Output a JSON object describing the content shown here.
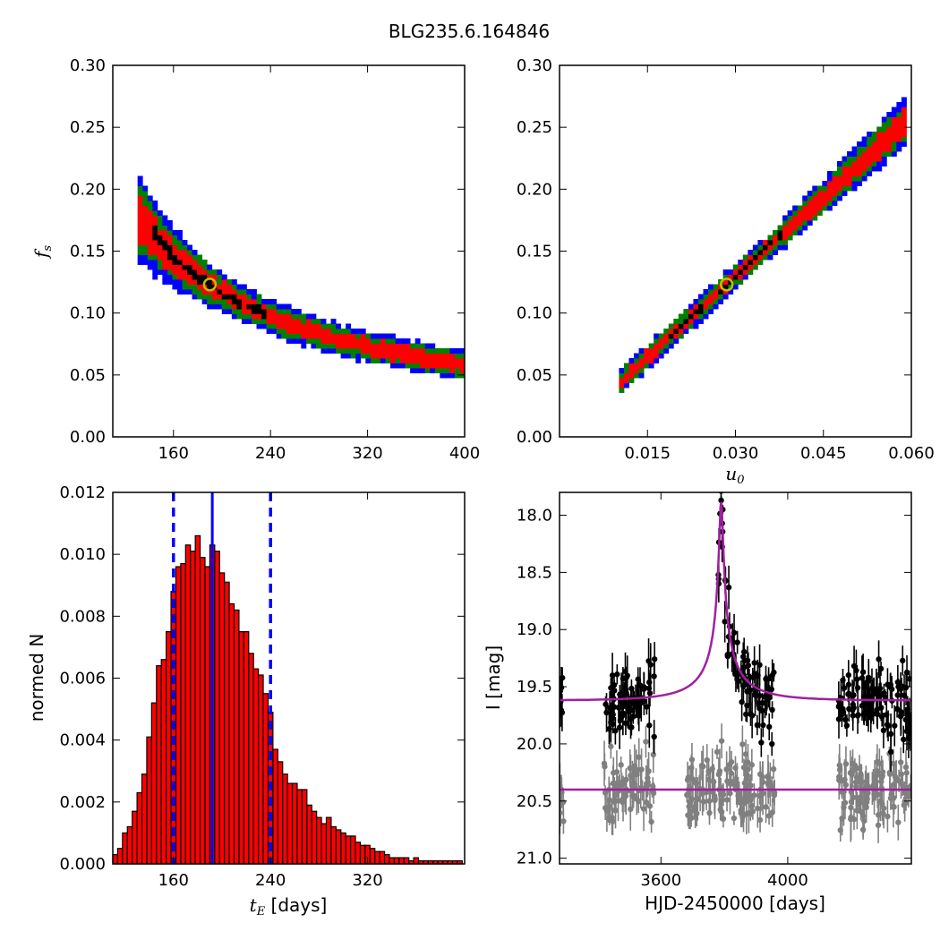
{
  "figure": {
    "title": "BLG235.6.164846"
  },
  "colors": {
    "sigma1": "#000000",
    "sigma2": "#ff0000",
    "sigma3": "#008000",
    "sigma4": "#0000ff",
    "best_fit_marker": "#bfbf00",
    "histogram_bar": "#ff0000",
    "median_line": "#0000ff",
    "model_curve": "#a020a0",
    "data_primary": "#000000",
    "data_secondary": "#808080"
  },
  "chart_data": [
    {
      "id": "tE-fs",
      "type": "heatmap",
      "xlabel": "",
      "ylabel": "f_s",
      "xlim": [
        110,
        400
      ],
      "ylim": [
        0.0,
        0.3
      ],
      "xticks": [
        160,
        240,
        320,
        400
      ],
      "xticklabels": [
        "160",
        "240",
        "320",
        "400"
      ],
      "yticks": [
        0.0,
        0.05,
        0.1,
        0.15,
        0.2,
        0.25,
        0.3
      ],
      "yticklabels": [
        "0.00",
        "0.05",
        "0.10",
        "0.15",
        "0.20",
        "0.25",
        "0.30"
      ],
      "best_fit": {
        "x": 190,
        "y": 0.123
      },
      "relation": "f_s approximately proportional to 1/t_E",
      "confidence_regions": [
        "1-sigma (black)",
        "2-sigma (red)",
        "3-sigma (green)",
        ">3-sigma (blue)"
      ]
    },
    {
      "id": "u0-fs",
      "type": "heatmap",
      "xlabel": "u_0",
      "ylabel": "",
      "xlim": [
        0.0,
        0.06
      ],
      "ylim": [
        0.0,
        0.3
      ],
      "xticks": [
        0.015,
        0.03,
        0.045,
        0.06
      ],
      "xticklabels": [
        "0.015",
        "0.030",
        "0.045",
        "0.060"
      ],
      "yticks": [
        0.0,
        0.05,
        0.1,
        0.15,
        0.2,
        0.25,
        0.3
      ],
      "yticklabels": [
        "0.00",
        "0.05",
        "0.10",
        "0.15",
        "0.20",
        "0.25",
        "0.30"
      ],
      "best_fit": {
        "x": 0.0285,
        "y": 0.123
      },
      "relation": "f_s approximately proportional to u_0",
      "confidence_regions": [
        "1-sigma (black)",
        "2-sigma (red)",
        "3-sigma (green)",
        ">3-sigma (blue)"
      ]
    },
    {
      "id": "tE-hist",
      "type": "bar",
      "xlabel": "t_E [days]",
      "ylabel": "normed N",
      "xlim": [
        110,
        400
      ],
      "ylim": [
        0.0,
        0.012
      ],
      "xticks": [
        160,
        240,
        320
      ],
      "xticklabels": [
        "160",
        "240",
        "320"
      ],
      "yticks": [
        0.0,
        0.002,
        0.004,
        0.006,
        0.008,
        0.01,
        0.012
      ],
      "yticklabels": [
        "0.000",
        "0.002",
        "0.004",
        "0.006",
        "0.008",
        "0.010",
        "0.012"
      ],
      "bin_start": 110,
      "bin_width": 4.0,
      "values": [
        0.0003,
        0.0005,
        0.001,
        0.0012,
        0.0017,
        0.0023,
        0.0029,
        0.0041,
        0.0052,
        0.0064,
        0.0066,
        0.0075,
        0.0088,
        0.0096,
        0.0097,
        0.0103,
        0.0101,
        0.0106,
        0.0099,
        0.0096,
        0.0103,
        0.0101,
        0.0094,
        0.0091,
        0.0084,
        0.0082,
        0.0075,
        0.0075,
        0.0068,
        0.0063,
        0.0061,
        0.0055,
        0.0049,
        0.0037,
        0.0033,
        0.0029,
        0.0026,
        0.0026,
        0.0024,
        0.0024,
        0.0019,
        0.0017,
        0.0015,
        0.0013,
        0.0015,
        0.0012,
        0.0011,
        0.001,
        0.0009,
        0.0009,
        0.0007,
        0.0006,
        0.0006,
        0.0005,
        0.0004,
        0.0004,
        0.0003,
        0.0002,
        0.0002,
        0.0002,
        0.0002,
        0.0001,
        0.0002,
        0.0001,
        0.0001,
        0.0001,
        0.0001,
        0.0001,
        0.0001,
        0.0001,
        0.0001,
        0.0001
      ],
      "median": 192,
      "lower_bound": 160,
      "upper_bound": 240
    },
    {
      "id": "lightcurve",
      "type": "scatter",
      "xlabel": "HJD-2450000 [days]",
      "ylabel": "I [mag]",
      "xlim": [
        3280,
        4390
      ],
      "ylim": [
        21.05,
        17.8
      ],
      "y_inverted": true,
      "xticks": [
        3600,
        4000
      ],
      "xticklabels": [
        "3600",
        "4000"
      ],
      "yticks": [
        18.0,
        18.5,
        19.0,
        19.5,
        20.0,
        20.5,
        21.0
      ],
      "yticklabels": [
        "18.0",
        "18.5",
        "19.0",
        "19.5",
        "20.0",
        "20.5",
        "21.0"
      ],
      "model": {
        "t0": 3790,
        "baseline_mag": 19.62,
        "peak_mag": 17.88,
        "tE": 190,
        "u0": 0.0285
      },
      "residual_model": {
        "baseline_mag": 20.4
      },
      "series": [
        {
          "name": "",
          "color": "data_primary",
          "seasons": [
            [
              3280,
              3295
            ],
            [
              3420,
              3580
            ],
            [
              3780,
              3960
            ],
            [
              4160,
              4390
            ]
          ]
        },
        {
          "name": "",
          "color": "data_secondary",
          "seasons": [
            [
              3280,
              3295
            ],
            [
              3420,
              3580
            ],
            [
              3680,
              3960
            ],
            [
              4160,
              4390
            ]
          ]
        }
      ]
    }
  ]
}
